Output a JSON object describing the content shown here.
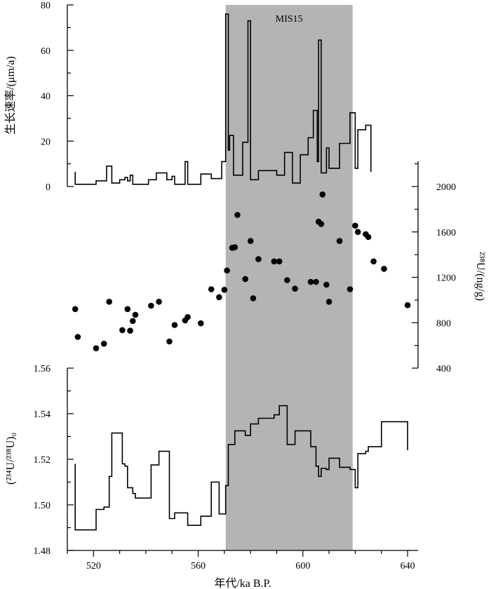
{
  "chart_data": {
    "type": "line",
    "x_axis": {
      "label": "年代/ka B.P.",
      "range": [
        510,
        644
      ],
      "ticks": [
        520,
        560,
        600,
        640
      ],
      "minor_step": 10
    },
    "highlight_band": {
      "label": "MIS15",
      "x_range": [
        570.5,
        619
      ]
    },
    "panels": [
      {
        "id": "growth_rate",
        "type": "line",
        "step": true,
        "color": "#000000",
        "y_label": "生长速率/(μm/a)",
        "y_range": [
          0,
          80
        ],
        "y_ticks": [
          0,
          20,
          40,
          60,
          80
        ],
        "y_side": "left",
        "points": [
          [
            513,
            6.5
          ],
          [
            513,
            1
          ],
          [
            521,
            1
          ],
          [
            521,
            2.5
          ],
          [
            525,
            2.5
          ],
          [
            525,
            9
          ],
          [
            527,
            9
          ],
          [
            527,
            1.5
          ],
          [
            530,
            1.5
          ],
          [
            530,
            3
          ],
          [
            532,
            3
          ],
          [
            532,
            4
          ],
          [
            533,
            4
          ],
          [
            533,
            2.5
          ],
          [
            534,
            2.5
          ],
          [
            534,
            5
          ],
          [
            535,
            5
          ],
          [
            535,
            1
          ],
          [
            541,
            1
          ],
          [
            541,
            3
          ],
          [
            544,
            3
          ],
          [
            544,
            6
          ],
          [
            548,
            6
          ],
          [
            548,
            3
          ],
          [
            550,
            3
          ],
          [
            550,
            4.5
          ],
          [
            551,
            4.5
          ],
          [
            551,
            1
          ],
          [
            555,
            1
          ],
          [
            555,
            11
          ],
          [
            556,
            11
          ],
          [
            556,
            1
          ],
          [
            561,
            1
          ],
          [
            561,
            5.5
          ],
          [
            565,
            5.5
          ],
          [
            565,
            3.5
          ],
          [
            569,
            3.5
          ],
          [
            569,
            11
          ],
          [
            570.5,
            11
          ],
          [
            570.5,
            76
          ],
          [
            571.5,
            76
          ],
          [
            571.5,
            16
          ],
          [
            572,
            16
          ],
          [
            572,
            22.5
          ],
          [
            573.5,
            22.5
          ],
          [
            573.5,
            5
          ],
          [
            577,
            5
          ],
          [
            577,
            19.5
          ],
          [
            579,
            19.5
          ],
          [
            579,
            73
          ],
          [
            580,
            73
          ],
          [
            580,
            3
          ],
          [
            583,
            3
          ],
          [
            583,
            7
          ],
          [
            590,
            7
          ],
          [
            590,
            5
          ],
          [
            593,
            5
          ],
          [
            593,
            15
          ],
          [
            596,
            15
          ],
          [
            596,
            1.5
          ],
          [
            599,
            1.5
          ],
          [
            599,
            14
          ],
          [
            602,
            14
          ],
          [
            602,
            21.5
          ],
          [
            604,
            21.5
          ],
          [
            604,
            33.5
          ],
          [
            605.5,
            33.5
          ],
          [
            605.5,
            11
          ],
          [
            606,
            11
          ],
          [
            606,
            64.5
          ],
          [
            607,
            64.5
          ],
          [
            607,
            6
          ],
          [
            609,
            6
          ],
          [
            609,
            17
          ],
          [
            610,
            17
          ],
          [
            610,
            8
          ],
          [
            614,
            8
          ],
          [
            614,
            19
          ],
          [
            618,
            19
          ],
          [
            618,
            32.5
          ],
          [
            620,
            32.5
          ],
          [
            620,
            8
          ],
          [
            621,
            8
          ],
          [
            621,
            25
          ],
          [
            624,
            25
          ],
          [
            624,
            27
          ],
          [
            626,
            27
          ],
          [
            626,
            6.5
          ]
        ]
      },
      {
        "id": "u238",
        "type": "scatter",
        "color": "#000000",
        "y_label": "²³⁸U/(ng/g)",
        "y_range": [
          400,
          2000
        ],
        "y_ticks": [
          400,
          800,
          1200,
          1600,
          2000
        ],
        "y_side": "right",
        "points": [
          [
            513,
            920
          ],
          [
            514,
            675
          ],
          [
            521,
            575
          ],
          [
            524,
            615
          ],
          [
            526,
            985
          ],
          [
            531,
            735
          ],
          [
            533,
            920
          ],
          [
            534,
            730
          ],
          [
            535,
            815
          ],
          [
            536,
            870
          ],
          [
            542,
            950
          ],
          [
            545,
            985
          ],
          [
            549,
            635
          ],
          [
            551,
            780
          ],
          [
            555,
            820
          ],
          [
            556,
            850
          ],
          [
            561,
            795
          ],
          [
            565,
            1095
          ],
          [
            568,
            1025
          ],
          [
            570,
            1090
          ],
          [
            571,
            1260
          ],
          [
            573,
            1460
          ],
          [
            574,
            1465
          ],
          [
            575,
            1750
          ],
          [
            578,
            1185
          ],
          [
            580,
            1520
          ],
          [
            581,
            1015
          ],
          [
            583,
            1360
          ],
          [
            589,
            1340
          ],
          [
            591,
            1340
          ],
          [
            594,
            1175
          ],
          [
            597,
            1100
          ],
          [
            603,
            1160
          ],
          [
            605,
            1160
          ],
          [
            606,
            1690
          ],
          [
            607,
            1670
          ],
          [
            607.5,
            1930
          ],
          [
            609,
            1135
          ],
          [
            610,
            985
          ],
          [
            614,
            1520
          ],
          [
            618,
            1095
          ],
          [
            620,
            1655
          ],
          [
            621,
            1600
          ],
          [
            624,
            1580
          ],
          [
            625,
            1555
          ],
          [
            627,
            1340
          ],
          [
            631,
            1275
          ],
          [
            640,
            955
          ]
        ]
      },
      {
        "id": "u234_ratio",
        "type": "line",
        "step": true,
        "color": "#000000",
        "y_label": "(²³⁴U/²³⁸U)₀",
        "y_range": [
          1.48,
          1.56
        ],
        "y_ticks": [
          1.48,
          1.5,
          1.52,
          1.54,
          1.56
        ],
        "y_tick_labels": [
          "1.48",
          "1.50",
          "1.52",
          "1.54",
          "1.56"
        ],
        "y_side": "left",
        "points": [
          [
            513,
            1.518
          ],
          [
            513,
            1.489
          ],
          [
            521,
            1.489
          ],
          [
            521,
            1.498
          ],
          [
            524,
            1.498
          ],
          [
            524,
            1.499
          ],
          [
            526,
            1.499
          ],
          [
            526,
            1.5125
          ],
          [
            527,
            1.5125
          ],
          [
            527,
            1.5315
          ],
          [
            531,
            1.5315
          ],
          [
            531,
            1.518
          ],
          [
            532,
            1.518
          ],
          [
            532,
            1.517
          ],
          [
            533,
            1.517
          ],
          [
            533,
            1.5075
          ],
          [
            535,
            1.5075
          ],
          [
            535,
            1.505
          ],
          [
            536,
            1.505
          ],
          [
            536,
            1.503
          ],
          [
            542,
            1.503
          ],
          [
            542,
            1.5175
          ],
          [
            545,
            1.5175
          ],
          [
            545,
            1.5235
          ],
          [
            549,
            1.5235
          ],
          [
            549,
            1.494
          ],
          [
            551,
            1.494
          ],
          [
            551,
            1.4965
          ],
          [
            556,
            1.4965
          ],
          [
            556,
            1.491
          ],
          [
            561,
            1.491
          ],
          [
            561,
            1.495
          ],
          [
            565,
            1.495
          ],
          [
            565,
            1.51
          ],
          [
            568,
            1.51
          ],
          [
            568,
            1.496
          ],
          [
            570.5,
            1.496
          ],
          [
            570.5,
            1.5085
          ],
          [
            571.5,
            1.5085
          ],
          [
            571.5,
            1.5265
          ],
          [
            574,
            1.5265
          ],
          [
            574,
            1.5325
          ],
          [
            578,
            1.5325
          ],
          [
            578,
            1.5305
          ],
          [
            580,
            1.5305
          ],
          [
            580,
            1.5355
          ],
          [
            583,
            1.5355
          ],
          [
            583,
            1.538
          ],
          [
            589,
            1.538
          ],
          [
            589,
            1.5395
          ],
          [
            591,
            1.5395
          ],
          [
            591,
            1.5435
          ],
          [
            594,
            1.5435
          ],
          [
            594,
            1.5265
          ],
          [
            597,
            1.5265
          ],
          [
            597,
            1.5325
          ],
          [
            603,
            1.5325
          ],
          [
            603,
            1.5255
          ],
          [
            605,
            1.5255
          ],
          [
            605,
            1.517
          ],
          [
            606,
            1.517
          ],
          [
            606,
            1.5125
          ],
          [
            607,
            1.5125
          ],
          [
            607,
            1.516
          ],
          [
            609,
            1.516
          ],
          [
            609,
            1.5155
          ],
          [
            610,
            1.5155
          ],
          [
            610,
            1.5205
          ],
          [
            614,
            1.5205
          ],
          [
            614,
            1.5165
          ],
          [
            618,
            1.5165
          ],
          [
            618,
            1.5155
          ],
          [
            620,
            1.5155
          ],
          [
            620,
            1.5075
          ],
          [
            621,
            1.5075
          ],
          [
            621,
            1.5225
          ],
          [
            624,
            1.5225
          ],
          [
            624,
            1.5235
          ],
          [
            625,
            1.5235
          ],
          [
            625,
            1.5255
          ],
          [
            630,
            1.5255
          ],
          [
            630,
            1.5365
          ],
          [
            640,
            1.5365
          ],
          [
            640,
            1.524
          ]
        ]
      }
    ]
  }
}
